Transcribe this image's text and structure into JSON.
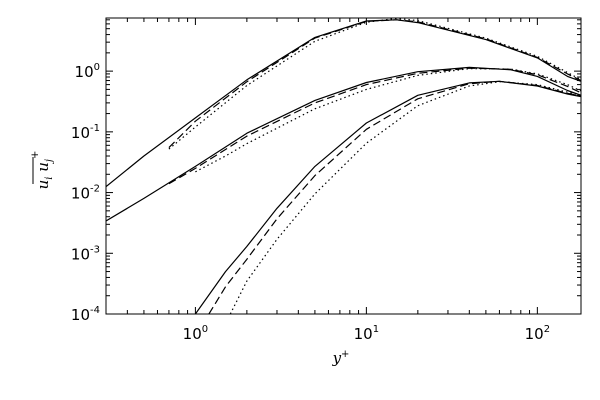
{
  "chart_data": {
    "type": "line",
    "title": "",
    "xlabel": "y⁺",
    "ylabel": "u_i u_j⁺ (overlined)",
    "x_scale": "log",
    "y_scale": "log",
    "xlim": [
      0.3,
      180
    ],
    "ylim": [
      0.0001,
      7.5
    ],
    "grid": false,
    "legend": "none",
    "x_ticks": [
      {
        "value": 1,
        "base": "10",
        "exp": "0"
      },
      {
        "value": 10,
        "base": "10",
        "exp": "1"
      },
      {
        "value": 100,
        "base": "10",
        "exp": "2"
      }
    ],
    "y_ticks": [
      {
        "value": 0.0001,
        "base": "10",
        "exp": "-4"
      },
      {
        "value": 0.001,
        "base": "10",
        "exp": "-3"
      },
      {
        "value": 0.01,
        "base": "10",
        "exp": "-2"
      },
      {
        "value": 0.1,
        "base": "10",
        "exp": "-1"
      },
      {
        "value": 1,
        "base": "10",
        "exp": "0"
      }
    ],
    "series": [
      {
        "group": "upper",
        "style": "solid",
        "x": [
          0.3,
          0.5,
          1,
          2,
          5,
          10,
          15,
          20,
          50,
          100,
          150,
          180
        ],
        "y": [
          0.0125,
          0.04,
          0.17,
          0.72,
          3.6,
          6.7,
          7.0,
          6.3,
          3.3,
          1.65,
          0.82,
          0.68
        ]
      },
      {
        "group": "upper",
        "style": "dashed",
        "x": [
          0.7,
          1,
          2,
          5,
          10,
          15,
          20,
          50,
          100,
          150,
          180
        ],
        "y": [
          0.055,
          0.15,
          0.67,
          3.5,
          6.6,
          7.0,
          6.5,
          3.4,
          1.68,
          0.9,
          0.7
        ]
      },
      {
        "group": "upper",
        "style": "dotted",
        "x": [
          0.7,
          1,
          2,
          5,
          10,
          15,
          20,
          50,
          100,
          150,
          180
        ],
        "y": [
          0.052,
          0.12,
          0.58,
          3.1,
          6.4,
          7.4,
          6.8,
          3.5,
          1.75,
          0.95,
          0.72
        ]
      },
      {
        "group": "middle",
        "style": "solid",
        "x": [
          0.3,
          0.5,
          1,
          2,
          5,
          10,
          20,
          40,
          70,
          100,
          150,
          180
        ],
        "y": [
          0.0034,
          0.008,
          0.027,
          0.095,
          0.33,
          0.65,
          0.98,
          1.15,
          1.05,
          0.82,
          0.48,
          0.4
        ]
      },
      {
        "group": "middle",
        "style": "dashed",
        "x": [
          0.7,
          1,
          2,
          5,
          10,
          20,
          40,
          70,
          100,
          150,
          180
        ],
        "y": [
          0.014,
          0.025,
          0.085,
          0.3,
          0.6,
          0.92,
          1.12,
          1.07,
          0.87,
          0.56,
          0.44
        ]
      },
      {
        "group": "middle",
        "style": "dotted",
        "x": [
          1,
          1.5,
          2,
          5,
          10,
          20,
          40,
          70,
          100,
          150,
          180
        ],
        "y": [
          0.022,
          0.04,
          0.064,
          0.24,
          0.5,
          0.85,
          1.1,
          1.08,
          0.9,
          0.6,
          0.47
        ]
      },
      {
        "group": "lower",
        "style": "solid",
        "x": [
          1,
          1.5,
          2,
          3,
          5,
          10,
          20,
          40,
          60,
          100,
          150,
          180
        ],
        "y": [
          0.0001,
          0.0005,
          0.0013,
          0.0055,
          0.027,
          0.14,
          0.4,
          0.64,
          0.68,
          0.57,
          0.42,
          0.38
        ]
      },
      {
        "group": "lower",
        "style": "dashed",
        "x": [
          1.2,
          1.5,
          2,
          3,
          5,
          10,
          20,
          40,
          60,
          100,
          150,
          180
        ],
        "y": [
          0.0001,
          0.00028,
          0.0008,
          0.0037,
          0.019,
          0.11,
          0.35,
          0.62,
          0.68,
          0.58,
          0.43,
          0.39
        ]
      },
      {
        "group": "lower",
        "style": "dotted",
        "x": [
          1.6,
          2,
          3,
          5,
          10,
          20,
          40,
          60,
          100,
          150,
          180
        ],
        "y": [
          0.0001,
          0.00035,
          0.0017,
          0.0095,
          0.065,
          0.27,
          0.57,
          0.67,
          0.6,
          0.45,
          0.4
        ]
      }
    ]
  }
}
